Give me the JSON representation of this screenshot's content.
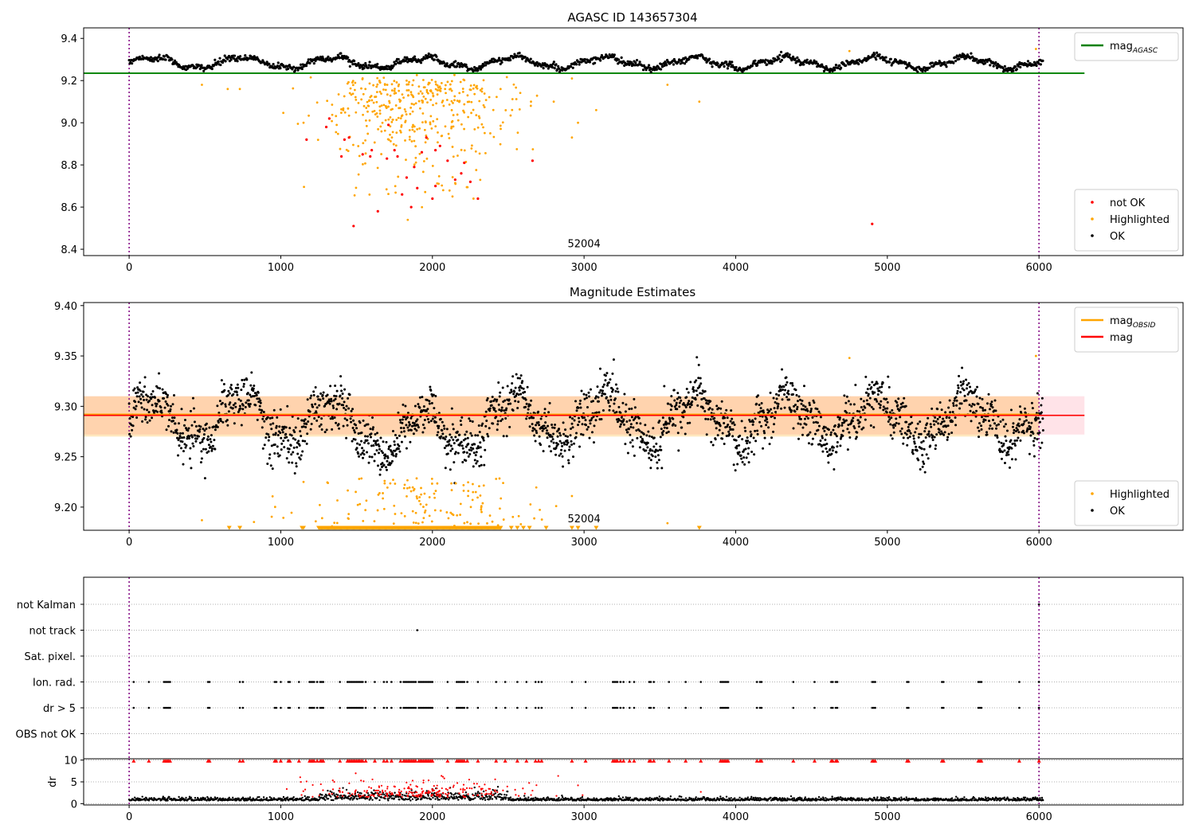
{
  "chart_data": [
    {
      "type": "scatter",
      "title": "AGASC ID 143657304",
      "xlim": [
        -300,
        6950
      ],
      "ylim": [
        8.37,
        9.45
      ],
      "xticks": [
        0,
        1000,
        2000,
        3000,
        4000,
        5000,
        6000
      ],
      "yticks": [
        8.4,
        8.6,
        8.8,
        9.0,
        9.2,
        9.4
      ],
      "ytick_labels": [
        "8.4",
        "8.6",
        "8.8",
        "9.0",
        "9.2",
        "9.4"
      ],
      "grid": false,
      "obsid_label": {
        "text": "52004",
        "x": 3000,
        "y": 8.41
      },
      "vlines": [
        0,
        6000
      ],
      "hlines": [
        {
          "name": "mag_AGASC",
          "y": 9.235,
          "x": [
            -300,
            6300
          ],
          "color": "#008000"
        }
      ],
      "series": [
        {
          "name": "OK",
          "color": "#000000",
          "kind": "ok",
          "x_range": [
            0,
            6030
          ],
          "baseline": 9.285,
          "amplitude": 0.025,
          "scatter": 0.012,
          "n": 1300
        },
        {
          "name": "Highlighted",
          "color": "#ffa500",
          "kind": "cloud",
          "n": 420,
          "center": 1900,
          "spread": 330,
          "ymin": 8.45,
          "ymax": 9.23,
          "extra_points": [
            [
              480,
              9.18
            ],
            [
              650,
              9.16
            ],
            [
              730,
              9.16
            ],
            [
              1150,
              9.0
            ],
            [
              2650,
              9.1
            ],
            [
              2800,
              9.1
            ],
            [
              2920,
              8.93
            ],
            [
              2960,
              9.0
            ],
            [
              2920,
              9.21
            ],
            [
              3080,
              9.06
            ],
            [
              3550,
              9.18
            ],
            [
              3760,
              9.1
            ],
            [
              4750,
              9.34
            ],
            [
              5980,
              9.35
            ]
          ]
        },
        {
          "name": "not OK",
          "color": "#ff0000",
          "kind": "points",
          "points": [
            [
              1170,
              8.92
            ],
            [
              1300,
              8.98
            ],
            [
              1320,
              9.02
            ],
            [
              1400,
              8.84
            ],
            [
              1420,
              8.92
            ],
            [
              1450,
              8.93
            ],
            [
              1540,
              8.85
            ],
            [
              1590,
              8.84
            ],
            [
              1600,
              8.87
            ],
            [
              1640,
              8.58
            ],
            [
              1700,
              8.83
            ],
            [
              1710,
              8.99
            ],
            [
              1750,
              8.87
            ],
            [
              1770,
              8.84
            ],
            [
              1800,
              8.66
            ],
            [
              1830,
              8.74
            ],
            [
              1860,
              8.6
            ],
            [
              1880,
              8.79
            ],
            [
              1900,
              8.69
            ],
            [
              1930,
              8.86
            ],
            [
              1960,
              8.93
            ],
            [
              2000,
              8.64
            ],
            [
              2020,
              8.87
            ],
            [
              2050,
              8.89
            ],
            [
              2100,
              8.82
            ],
            [
              2150,
              8.73
            ],
            [
              2190,
              8.76
            ],
            [
              2210,
              8.81
            ],
            [
              2250,
              8.72
            ],
            [
              2300,
              8.64
            ],
            [
              1480,
              8.51
            ],
            [
              2660,
              8.82
            ],
            [
              4900,
              8.52
            ],
            [
              2020,
              8.7
            ]
          ]
        }
      ],
      "legend": [
        {
          "position": "upper right",
          "entries": [
            {
              "label_main": "mag",
              "label_sub": "AGASC",
              "color": "#008000",
              "marker": "line"
            }
          ]
        },
        {
          "position": "lower right",
          "entries": [
            {
              "label": "not OK",
              "color": "#ff0000",
              "marker": "dot"
            },
            {
              "label": "Highlighted",
              "color": "#ffa500",
              "marker": "dot"
            },
            {
              "label": "OK",
              "color": "#000000",
              "marker": "dot"
            }
          ]
        }
      ]
    },
    {
      "type": "scatter",
      "title": "Magnitude Estimates",
      "xlim": [
        -300,
        6950
      ],
      "ylim": [
        9.177,
        9.403
      ],
      "xticks": [
        0,
        1000,
        2000,
        3000,
        4000,
        5000,
        6000
      ],
      "yticks": [
        9.2,
        9.25,
        9.3,
        9.35,
        9.4
      ],
      "ytick_labels": [
        "9.20",
        "9.25",
        "9.30",
        "9.35",
        "9.40"
      ],
      "grid": false,
      "obsid_label": {
        "text": "52004",
        "x": 3000,
        "y": 9.185
      },
      "vlines": [
        0,
        6000
      ],
      "bands": [
        {
          "y": [
            9.272,
            9.31
          ],
          "x": [
            -300,
            6300
          ],
          "color": "#ffc0cb",
          "opacity": 0.45
        },
        {
          "y": [
            9.27,
            9.31
          ],
          "x": [
            -300,
            6000
          ],
          "color": "#ffa500",
          "opacity": 0.25
        }
      ],
      "hlines": [
        {
          "name": "mag_OBSID",
          "y": 9.292,
          "x": [
            -300,
            6000
          ],
          "color": "#ffa500",
          "width": 2
        },
        {
          "name": "mag",
          "y": 9.291,
          "x": [
            -300,
            6300
          ],
          "color": "#ff0000",
          "width": 1.6
        }
      ],
      "series": [
        {
          "name": "OK",
          "color": "#000000",
          "kind": "ok2",
          "x_range": [
            0,
            6030
          ],
          "baseline": 9.287,
          "amplitude": 0.022,
          "scatter": 0.012,
          "n": 2300
        },
        {
          "name": "Highlighted",
          "color": "#ffa500",
          "kind": "cloud2",
          "n": 140,
          "center": 1950,
          "spread": 420,
          "ymin": 9.18,
          "ymax": 9.23,
          "extra_points": [
            [
              480,
              9.187
            ],
            [
              1150,
              9.225
            ],
            [
              2920,
              9.211
            ],
            [
              3550,
              9.184
            ],
            [
              4750,
              9.348
            ],
            [
              5980,
              9.35
            ]
          ]
        },
        {
          "name": "Highlighted (off-scale)",
          "color": "#ffa500",
          "kind": "triangles",
          "y": 9.179,
          "x_dense": [
            1250,
            2450
          ],
          "x_points": [
            660,
            730,
            1140,
            1150,
            2520,
            2560,
            2600,
            2640,
            2750,
            2920,
            2960,
            3080,
            3760
          ]
        }
      ],
      "legend": [
        {
          "position": "upper right",
          "entries": [
            {
              "label_main": "mag",
              "label_sub": "OBSID",
              "color": "#ffa500",
              "marker": "line"
            },
            {
              "label": "mag",
              "color": "#ff0000",
              "marker": "line"
            }
          ]
        },
        {
          "position": "lower right",
          "entries": [
            {
              "label": "Highlighted",
              "color": "#ffa500",
              "marker": "dot"
            },
            {
              "label": "OK",
              "color": "#000000",
              "marker": "dot"
            }
          ]
        }
      ]
    },
    {
      "type": "scatter",
      "title": "",
      "xlim": [
        -300,
        6950
      ],
      "categories": [
        "not Kalman",
        "not track",
        "Sat. pixel.",
        "Ion. rad.",
        "dr > 5",
        "OBS not OK"
      ],
      "grid": true,
      "vlines": [
        0,
        6000
      ],
      "flag_times": [
        30,
        130,
        230,
        240,
        250,
        260,
        270,
        520,
        530,
        730,
        750,
        960,
        970,
        1000,
        1050,
        1060,
        1120,
        1190,
        1200,
        1210,
        1220,
        1240,
        1260,
        1270,
        1280,
        1390,
        1440,
        1450,
        1460,
        1470,
        1480,
        1490,
        1500,
        1510,
        1520,
        1530,
        1540,
        1560,
        1620,
        1680,
        1700,
        1730,
        1790,
        1810,
        1820,
        1830,
        1840,
        1850,
        1860,
        1870,
        1880,
        1890,
        1910,
        1920,
        1930,
        1940,
        1950,
        1960,
        1970,
        1980,
        1990,
        2000,
        2100,
        2160,
        2170,
        2180,
        2190,
        2200,
        2210,
        2230,
        2300,
        2420,
        2480,
        2560,
        2620,
        2680,
        2700,
        2720,
        2920,
        3010,
        3190,
        3200,
        3210,
        3220,
        3240,
        3260,
        3300,
        3330,
        3430,
        3440,
        3460,
        3560,
        3670,
        3770,
        3900,
        3910,
        3920,
        3930,
        3940,
        3950,
        4140,
        4160,
        4170,
        4380,
        4520,
        4630,
        4640,
        4660,
        4670,
        4900,
        4910,
        4920,
        5130,
        5140,
        5360,
        5370,
        5600,
        5610,
        5620,
        5870,
        6000
      ],
      "not_track_times": [
        1900
      ],
      "not_kalman_times": [
        6000
      ]
    },
    {
      "type": "scatter",
      "title": "",
      "xlim": [
        -300,
        6950
      ],
      "ylim": [
        -0.3,
        10.3
      ],
      "ylabel": "dr",
      "yticks": [
        0,
        5,
        10
      ],
      "ytick_labels": [
        "0",
        "5",
        "10"
      ],
      "xticks": [
        0,
        1000,
        2000,
        3000,
        4000,
        5000,
        6000
      ],
      "grid": true,
      "vlines": [
        0,
        6000
      ],
      "series": [
        {
          "name": "OK",
          "color": "#000000",
          "kind": "dr",
          "x_range": [
            0,
            6030
          ],
          "baseline": 0.7,
          "n": 1800
        },
        {
          "name": "not OK",
          "color": "#ff0000",
          "kind": "drcloud",
          "n": 230,
          "center": 1900,
          "spread": 380,
          "ymin": 1.5,
          "ymax": 7.5,
          "extra_points": [
            [
              1170,
              5.1
            ],
            [
              3770,
              2.7
            ],
            [
              2960,
              4.2
            ],
            [
              2660,
              3.0
            ]
          ]
        },
        {
          "name": "dr > 10",
          "color": "#ff0000",
          "kind": "dr_triangles",
          "y": 9.8
        }
      ]
    }
  ]
}
